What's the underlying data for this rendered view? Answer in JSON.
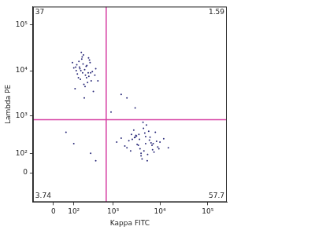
{
  "chart_data": {
    "type": "scatter",
    "x_label": "Kappa FITC",
    "y_label": "Lambda PE",
    "color": "#2b2b7a",
    "marker": "dot",
    "log": true,
    "grid": false,
    "xlim": [
      -100,
      250000
    ],
    "ylim": [
      -200,
      250000
    ],
    "xticks": [
      0,
      {
        "value": 100,
        "label": "10²"
      },
      {
        "value": 1000,
        "label": "10³"
      },
      {
        "value": 10000,
        "label": "10⁴"
      },
      {
        "value": 100000,
        "label": "10⁵"
      }
    ],
    "yticks": [
      0,
      {
        "value": 100,
        "label": "10²"
      },
      {
        "value": 1000,
        "label": "10³"
      },
      {
        "value": 10000,
        "label": "10⁴"
      },
      {
        "value": 100000,
        "label": "10⁵"
      }
    ],
    "gates": {
      "x": 700,
      "y": 800
    },
    "quadrant_percent": {
      "top_left": 37,
      "top_right": 1.59,
      "bottom_left": 3.74,
      "bottom_right": 57.7
    },
    "x": [
      150,
      220,
      90,
      310,
      180,
      120,
      260,
      200,
      140,
      400,
      170,
      240,
      110,
      330,
      190,
      280,
      160,
      210,
      130,
      350,
      230,
      100,
      270,
      175,
      300,
      145,
      250,
      195,
      380,
      125,
      215,
      165,
      290,
      235,
      155,
      185,
      450,
      205,
      115,
      265,
      3000,
      5000,
      2000,
      8000,
      4000,
      6000,
      2500,
      3500,
      10000,
      4500,
      7000,
      1500,
      5500,
      3200,
      9000,
      2800,
      6500,
      4200,
      12000,
      3800,
      5200,
      2200,
      7500,
      4800,
      3300,
      6200,
      1800,
      8500,
      4000,
      5800,
      2600,
      15000,
      3600,
      4600,
      7200,
      2900,
      5400,
      3100,
      6800,
      4400,
      1200,
      9500,
      3700,
      5000,
      2400,
      100,
      300,
      50,
      400,
      1500,
      2000,
      3000,
      900
    ],
    "values": [
      12000,
      8000,
      15000,
      6000,
      20000,
      10000,
      9000,
      5000,
      7000,
      11000,
      25000,
      13000,
      4000,
      9500,
      14000,
      17000,
      6500,
      10500,
      8500,
      3500,
      12500,
      11500,
      7500,
      18000,
      9000,
      16000,
      5500,
      22000,
      8000,
      13500,
      4500,
      10000,
      15000,
      7000,
      11000,
      9000,
      6000,
      2500,
      12000,
      19000,
      300,
      200,
      150,
      400,
      100,
      250,
      350,
      180,
      220,
      500,
      130,
      280,
      90,
      320,
      160,
      450,
      210,
      60,
      270,
      140,
      600,
      240,
      110,
      380,
      190,
      300,
      170,
      230,
      80,
      420,
      260,
      150,
      350,
      120,
      200,
      290,
      50,
      330,
      180,
      700,
      220,
      140,
      260,
      310,
      120,
      200,
      100,
      400,
      50,
      3000,
      2500,
      1500,
      1200
    ]
  }
}
